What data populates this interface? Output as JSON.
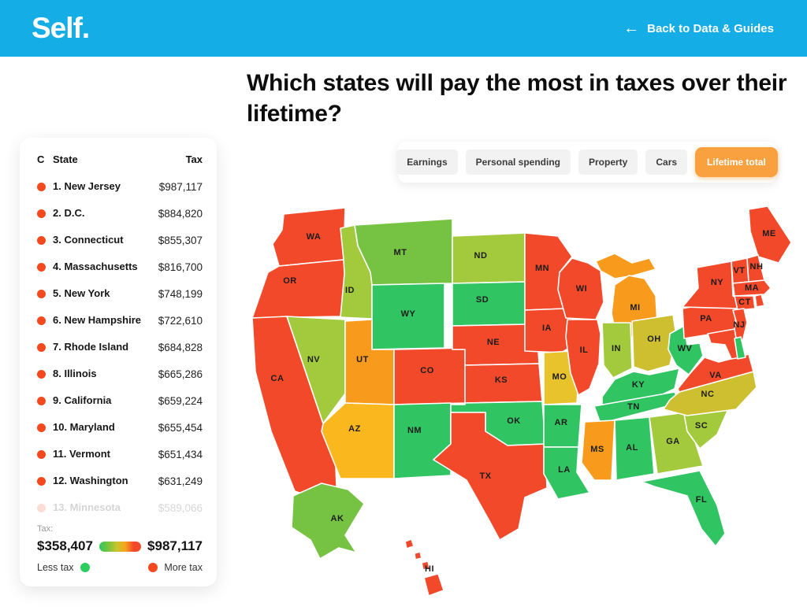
{
  "header": {
    "logo": "Self.",
    "back_label": "Back to Data & Guides",
    "bg": "#14ade6"
  },
  "title": "Which states will pay the most in taxes over their lifetime?",
  "tabs": [
    {
      "label": "Earnings",
      "active": false
    },
    {
      "label": "Personal spending",
      "active": false
    },
    {
      "label": "Property",
      "active": false
    },
    {
      "label": "Cars",
      "active": false
    },
    {
      "label": "Lifetime total",
      "active": true
    }
  ],
  "ranking": {
    "col_color": "C",
    "col_state": "State",
    "col_tax": "Tax",
    "rows": [
      {
        "rank": "1.",
        "state": "New Jersey",
        "tax": "$987,117",
        "faded": false
      },
      {
        "rank": "2.",
        "state": "D.C.",
        "tax": "$884,820",
        "faded": false
      },
      {
        "rank": "3.",
        "state": "Connecticut",
        "tax": "$855,307",
        "faded": false
      },
      {
        "rank": "4.",
        "state": "Massachusetts",
        "tax": "$816,700",
        "faded": false
      },
      {
        "rank": "5.",
        "state": "New York",
        "tax": "$748,199",
        "faded": false
      },
      {
        "rank": "6.",
        "state": "New Hampshire",
        "tax": "$722,610",
        "faded": false
      },
      {
        "rank": "7.",
        "state": "Rhode Island",
        "tax": "$684,828",
        "faded": false
      },
      {
        "rank": "8.",
        "state": "Illinois",
        "tax": "$665,286",
        "faded": false
      },
      {
        "rank": "9.",
        "state": "California",
        "tax": "$659,224",
        "faded": false
      },
      {
        "rank": "10.",
        "state": "Maryland",
        "tax": "$655,454",
        "faded": false
      },
      {
        "rank": "11.",
        "state": "Vermont",
        "tax": "$651,434",
        "faded": false
      },
      {
        "rank": "12.",
        "state": "Washington",
        "tax": "$631,249",
        "faded": false
      },
      {
        "rank": "13.",
        "state": "Minnesota",
        "tax": "$589,066",
        "faded": true
      }
    ]
  },
  "legend": {
    "label": "Tax:",
    "min": "$358,407",
    "max": "$987,117",
    "less": "Less tax",
    "more": "More tax",
    "less_color": "#2ecc5e",
    "more_color": "#f4491f"
  },
  "chart_data": {
    "type": "choropleth",
    "metric": "Lifetime total taxes paid by state (USD)",
    "range_min": 358407,
    "range_max": 987117,
    "palette": {
      "red": "#f2492a",
      "orange": "#f89b1c",
      "amber": "#fbb81e",
      "yellow": "#e8c32b",
      "olive": "#cdbf2f",
      "yellowgreen": "#a3c93c",
      "midgreen": "#76c344",
      "green": "#31c463"
    },
    "states": [
      {
        "abbr": "WA",
        "level": "red"
      },
      {
        "abbr": "OR",
        "level": "red"
      },
      {
        "abbr": "CA",
        "level": "red"
      },
      {
        "abbr": "NV",
        "level": "yellowgreen"
      },
      {
        "abbr": "ID",
        "level": "yellowgreen"
      },
      {
        "abbr": "MT",
        "level": "midgreen"
      },
      {
        "abbr": "WY",
        "level": "green"
      },
      {
        "abbr": "UT",
        "level": "orange"
      },
      {
        "abbr": "CO",
        "level": "red"
      },
      {
        "abbr": "AZ",
        "level": "amber"
      },
      {
        "abbr": "NM",
        "level": "green"
      },
      {
        "abbr": "ND",
        "level": "yellowgreen"
      },
      {
        "abbr": "SD",
        "level": "green"
      },
      {
        "abbr": "NE",
        "level": "red"
      },
      {
        "abbr": "KS",
        "level": "red"
      },
      {
        "abbr": "OK",
        "level": "green"
      },
      {
        "abbr": "TX",
        "level": "red"
      },
      {
        "abbr": "MN",
        "level": "red"
      },
      {
        "abbr": "IA",
        "level": "red"
      },
      {
        "abbr": "MO",
        "level": "yellow"
      },
      {
        "abbr": "AR",
        "level": "green"
      },
      {
        "abbr": "LA",
        "level": "green"
      },
      {
        "abbr": "WI",
        "level": "red"
      },
      {
        "abbr": "IL",
        "level": "red"
      },
      {
        "abbr": "MI",
        "level": "orange"
      },
      {
        "abbr": "IN",
        "level": "yellowgreen"
      },
      {
        "abbr": "OH",
        "level": "olive"
      },
      {
        "abbr": "KY",
        "level": "green"
      },
      {
        "abbr": "TN",
        "level": "green"
      },
      {
        "abbr": "MS",
        "level": "orange"
      },
      {
        "abbr": "AL",
        "level": "green"
      },
      {
        "abbr": "GA",
        "level": "yellowgreen"
      },
      {
        "abbr": "FL",
        "level": "green"
      },
      {
        "abbr": "SC",
        "level": "yellowgreen"
      },
      {
        "abbr": "NC",
        "level": "olive"
      },
      {
        "abbr": "VA",
        "level": "red"
      },
      {
        "abbr": "WV",
        "level": "green"
      },
      {
        "abbr": "PA",
        "level": "red"
      },
      {
        "abbr": "NY",
        "level": "red"
      },
      {
        "abbr": "ME",
        "level": "red"
      },
      {
        "abbr": "VT",
        "level": "red"
      },
      {
        "abbr": "NH",
        "level": "red"
      },
      {
        "abbr": "MA",
        "level": "red"
      },
      {
        "abbr": "CT",
        "level": "red"
      },
      {
        "abbr": "RI",
        "level": "red",
        "label": false
      },
      {
        "abbr": "NJ",
        "level": "red"
      },
      {
        "abbr": "MD",
        "level": "red",
        "label": false
      },
      {
        "abbr": "DE",
        "level": "green",
        "label": false
      },
      {
        "abbr": "AK",
        "level": "midgreen"
      },
      {
        "abbr": "HI",
        "level": "red"
      }
    ]
  }
}
